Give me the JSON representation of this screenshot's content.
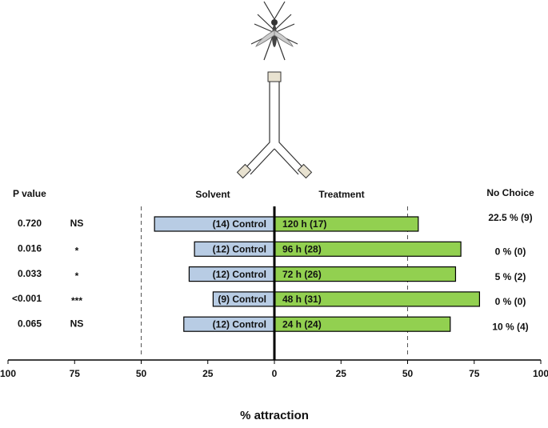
{
  "chart_data": {
    "type": "diverging-bar",
    "p_value_header": "P value",
    "no_choice_header": "No Choice",
    "x_label": "% attraction",
    "series": [
      {
        "name": "Solvent",
        "color": "#b8cce4",
        "values": [
          -45,
          -30,
          -32,
          -23,
          -34
        ],
        "bar_labels": [
          "(14) Control",
          "(12) Control",
          "(12) Control",
          "(9) Control",
          "(12) Control"
        ]
      },
      {
        "name": "Treatment",
        "color": "#92d050",
        "values": [
          54,
          70,
          68,
          77,
          66
        ],
        "bar_labels": [
          "120 h (17)",
          "96 h (28)",
          "72 h (26)",
          "48 h (31)",
          "24 h (24)"
        ]
      }
    ],
    "p_values": [
      "0.720",
      "0.016",
      "0.033",
      "<0.001",
      "0.065"
    ],
    "significance": [
      "NS",
      "*",
      "*",
      "***",
      "NS"
    ],
    "no_choice": [
      "22.5 % (9)",
      "0 % (0)",
      "5 % (2)",
      "0 % (0)",
      "10 % (4)"
    ],
    "xlim": [
      -100,
      100
    ],
    "xticks": [
      {
        "value": -100,
        "label": "100"
      },
      {
        "value": -75,
        "label": "75"
      },
      {
        "value": -50,
        "label": "50"
      },
      {
        "value": -25,
        "label": "25"
      },
      0,
      25,
      50,
      75,
      100
    ],
    "reference_lines": [
      -50,
      50
    ]
  }
}
